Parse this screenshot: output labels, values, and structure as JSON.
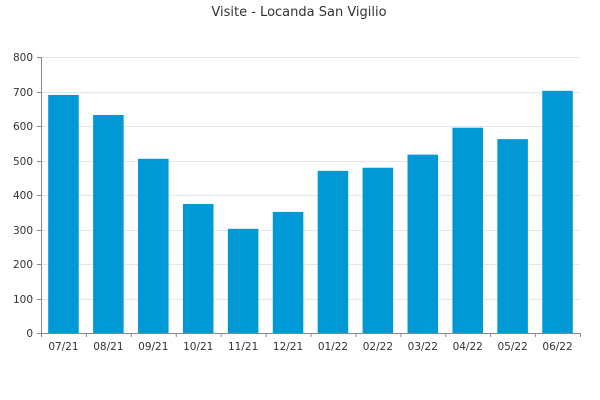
{
  "chart_data": {
    "type": "bar",
    "title": "Visite - Locanda San Vigilio",
    "xlabel": "",
    "ylabel": "",
    "categories": [
      "07/21",
      "08/21",
      "09/21",
      "10/21",
      "11/21",
      "12/21",
      "01/22",
      "02/22",
      "03/22",
      "04/22",
      "05/22",
      "06/22"
    ],
    "values": [
      690,
      632,
      505,
      374,
      302,
      351,
      470,
      479,
      517,
      595,
      562,
      702
    ],
    "ylim": [
      0,
      800
    ],
    "yticks": [
      0,
      100,
      200,
      300,
      400,
      500,
      600,
      700,
      800
    ],
    "grid": true,
    "legend": "none",
    "bar_color": "#0099d6"
  }
}
